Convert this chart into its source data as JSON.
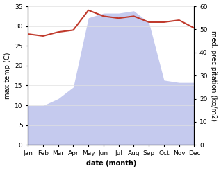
{
  "months": [
    "Jan",
    "Feb",
    "Mar",
    "Apr",
    "May",
    "Jun",
    "Jul",
    "Aug",
    "Sep",
    "Oct",
    "Nov",
    "Dec"
  ],
  "month_indices": [
    0,
    1,
    2,
    3,
    4,
    5,
    6,
    7,
    8,
    9,
    10,
    11
  ],
  "max_temp": [
    28,
    27.5,
    28.5,
    29,
    34,
    32.5,
    32,
    32.5,
    31,
    31,
    31.5,
    29.5
  ],
  "precipitation": [
    17,
    17,
    20,
    25,
    55,
    57,
    57,
    58,
    53,
    28,
    27,
    27
  ],
  "temp_ylim": [
    0,
    35
  ],
  "precip_ylim": [
    0,
    60
  ],
  "temp_yticks": [
    0,
    5,
    10,
    15,
    20,
    25,
    30,
    35
  ],
  "precip_yticks": [
    0,
    10,
    20,
    30,
    40,
    50,
    60
  ],
  "temp_color": "#c0392b",
  "precip_line_color": "#9b6b7b",
  "precip_fill_color": "#c5caee",
  "xlabel": "date (month)",
  "ylabel_left": "max temp (C)",
  "ylabel_right": "med. precipitation (kg/m2)",
  "grid_color": "#e0e0e0"
}
